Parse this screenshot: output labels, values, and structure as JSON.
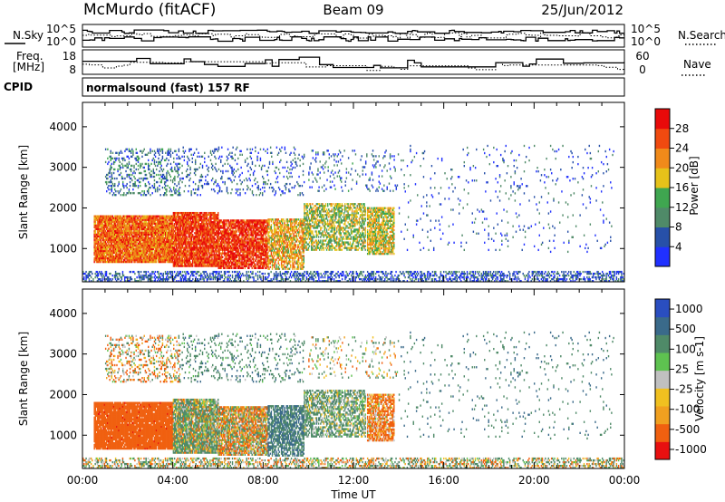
{
  "header": {
    "station": "McMurdo (fitACF)",
    "beam": "Beam 09",
    "date": "25/Jun/2012",
    "program": "normalsound (fast) 157 RF"
  },
  "chart_data": [
    {
      "type": "line",
      "panel": "noise",
      "left_label": "N.Sky",
      "right_label": "N.Search",
      "left_ticks": [
        "10^5",
        "10^0"
      ],
      "right_ticks": [
        "10^5",
        "10^0"
      ],
      "xlim_hours": [
        0,
        24
      ]
    },
    {
      "type": "line",
      "panel": "frequency",
      "left_label_lines": [
        "Freq.",
        "[MHz]"
      ],
      "right_label": "Nave",
      "left_ticks": [
        18,
        8
      ],
      "right_ticks": [
        60,
        0
      ],
      "left_ylim": [
        8,
        18
      ],
      "right_ylim": [
        0,
        60
      ],
      "xlim_hours": [
        0,
        24
      ]
    },
    {
      "type": "heatmap",
      "panel": "power",
      "cpid_label": "CPID",
      "ylabel": "Slant Range [km]",
      "xlabel": "",
      "ylim": [
        180,
        4600
      ],
      "y_ticks": [
        1000,
        2000,
        3000,
        4000
      ],
      "xlim_hours": [
        0,
        24
      ],
      "colorbar": {
        "label": "Power [dB]",
        "range": [
          0,
          32
        ],
        "ticks": [
          4,
          8,
          12,
          16,
          20,
          24,
          28
        ],
        "colors": [
          "#2030ff",
          "#2750a8",
          "#4f8a68",
          "#3fa650",
          "#e6c21a",
          "#f08a1a",
          "#f04a10",
          "#e80a0a"
        ]
      }
    },
    {
      "type": "heatmap",
      "panel": "velocity",
      "ylabel": "Slant Range [km]",
      "xlabel": "Time UT",
      "ylim": [
        180,
        4600
      ],
      "y_ticks": [
        1000,
        2000,
        3000,
        4000
      ],
      "x_ticks": [
        "00:00",
        "04:00",
        "08:00",
        "12:00",
        "16:00",
        "20:00",
        "00:00"
      ],
      "xlim_hours": [
        0,
        24
      ],
      "colorbar": {
        "label": "Velocity [m s-1]",
        "ticks": [
          "1000",
          "500",
          "100",
          "25",
          "-25",
          "-100",
          "-500",
          "-1000"
        ],
        "colors": [
          "#2a4ec0",
          "#3a6a8a",
          "#4f8a68",
          "#5ec250",
          "#c0c0c0",
          "#f0c020",
          "#f0a020",
          "#f06010",
          "#e81010"
        ]
      }
    }
  ]
}
